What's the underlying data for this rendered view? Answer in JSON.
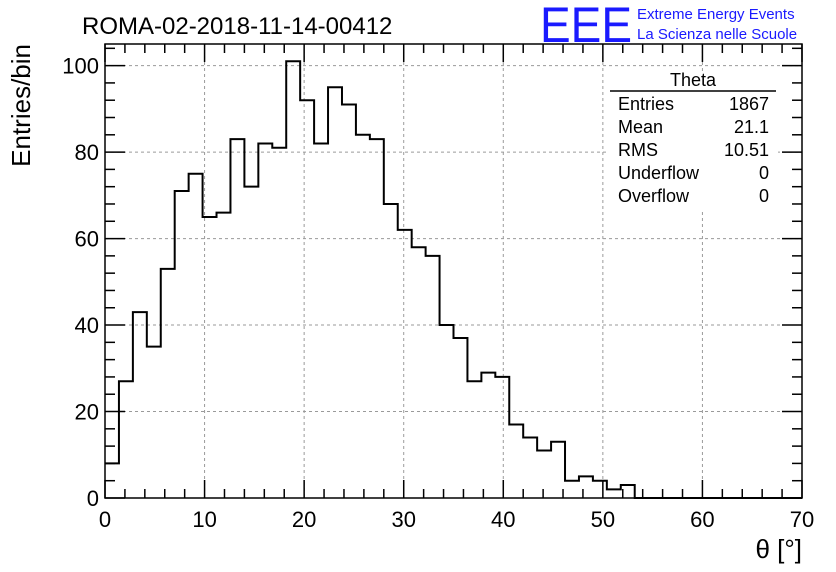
{
  "title": "ROMA-02-2018-11-14-00412",
  "logo": {
    "letters": "EEE",
    "line1": "Extreme Energy Events",
    "line2": "La Scienza nelle Scuole",
    "color": "#1a1aff"
  },
  "stats": {
    "title": "Theta",
    "rows": [
      {
        "label": "Entries",
        "value": "1867"
      },
      {
        "label": "Mean",
        "value": "21.1"
      },
      {
        "label": "RMS",
        "value": "10.51"
      },
      {
        "label": "Underflow",
        "value": "0"
      },
      {
        "label": "Overflow",
        "value": "0"
      }
    ]
  },
  "chart_data": {
    "type": "bar",
    "histogram": true,
    "xlabel": "θ [°]",
    "ylabel": "Entries/bin",
    "xlim": [
      0,
      70
    ],
    "ylim": [
      0,
      105
    ],
    "bin_width": 1.4,
    "bin_edges_start": 0,
    "values": [
      8,
      27,
      43,
      35,
      53,
      71,
      75,
      65,
      66,
      83,
      72,
      82,
      81,
      101,
      92,
      82,
      95,
      91,
      84,
      83,
      68,
      62,
      58,
      56,
      40,
      37,
      27,
      29,
      28,
      17,
      14,
      11,
      13,
      4,
      5,
      4,
      2,
      3,
      0,
      0,
      0,
      0,
      0,
      0,
      0,
      0,
      0,
      0,
      0,
      0
    ],
    "x_ticks": [
      0,
      10,
      20,
      30,
      40,
      50,
      60,
      70
    ],
    "y_ticks": [
      0,
      20,
      40,
      60,
      80,
      100
    ],
    "grid": true,
    "line_color": "#000000"
  }
}
